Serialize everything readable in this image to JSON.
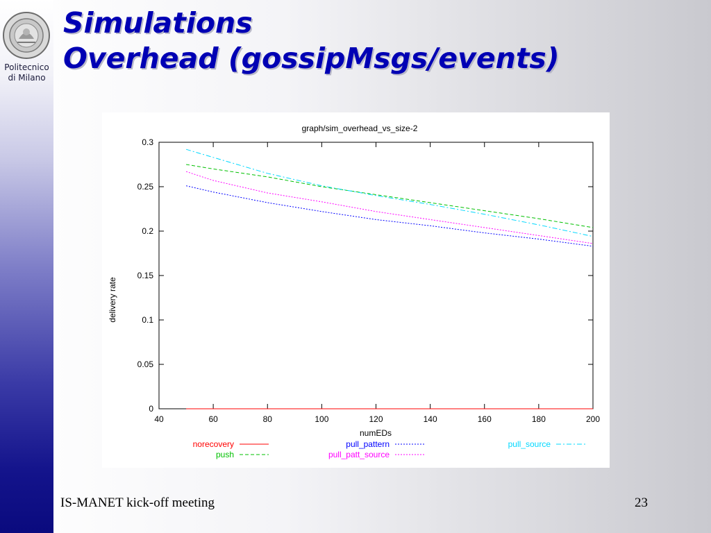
{
  "slide": {
    "title_line1": "Simulations",
    "title_line2": "Overhead (gossipMsgs/events)",
    "logo_text_line1": "Politecnico",
    "logo_text_line2": "di Milano",
    "footer_text": "IS-MANET kick-off meeting",
    "page_number": "23"
  },
  "colors": {
    "title": "#0000b4",
    "norecovery": "#ff0000",
    "push": "#00c000",
    "pull_pattern": "#0000ff",
    "pull_patt_source": "#ff00ff",
    "pull_source": "#00d8ff"
  },
  "chart_data": {
    "type": "line",
    "title": "graph/sim_overhead_vs_size-2",
    "xlabel": "numEDs",
    "ylabel": "delivery rate",
    "xlim": [
      40,
      200
    ],
    "ylim": [
      0,
      0.3
    ],
    "xticks": [
      "40",
      "60",
      "80",
      "100",
      "120",
      "140",
      "160",
      "180",
      "200"
    ],
    "yticks": [
      "0",
      "0.05",
      "0.1",
      "0.15",
      "0.2",
      "0.25",
      "0.3"
    ],
    "grid": false,
    "legend_position": "bottom",
    "series": [
      {
        "name": "norecovery",
        "color": "#ff0000",
        "dash": "solid",
        "x": [
          50,
          200
        ],
        "y": [
          0,
          0
        ]
      },
      {
        "name": "push",
        "color": "#00c000",
        "dash": "dashed",
        "x": [
          50,
          60,
          80,
          100,
          120,
          140,
          160,
          180,
          200
        ],
        "y": [
          0.275,
          0.27,
          0.261,
          0.25,
          0.241,
          0.232,
          0.223,
          0.214,
          0.204
        ]
      },
      {
        "name": "pull_pattern",
        "color": "#0000ff",
        "dash": "dotted",
        "x": [
          50,
          60,
          80,
          100,
          120,
          140,
          160,
          180,
          200
        ],
        "y": [
          0.251,
          0.244,
          0.232,
          0.222,
          0.213,
          0.206,
          0.198,
          0.191,
          0.183
        ]
      },
      {
        "name": "pull_patt_source",
        "color": "#ff00ff",
        "dash": "dotted",
        "x": [
          50,
          60,
          80,
          100,
          120,
          140,
          160,
          180,
          200
        ],
        "y": [
          0.267,
          0.257,
          0.243,
          0.233,
          0.222,
          0.213,
          0.204,
          0.195,
          0.186
        ]
      },
      {
        "name": "pull_source",
        "color": "#00d8ff",
        "dash": "dashdot",
        "x": [
          50,
          60,
          80,
          100,
          120,
          140,
          160,
          180,
          200
        ],
        "y": [
          0.292,
          0.283,
          0.265,
          0.251,
          0.24,
          0.23,
          0.219,
          0.207,
          0.194
        ]
      }
    ]
  }
}
